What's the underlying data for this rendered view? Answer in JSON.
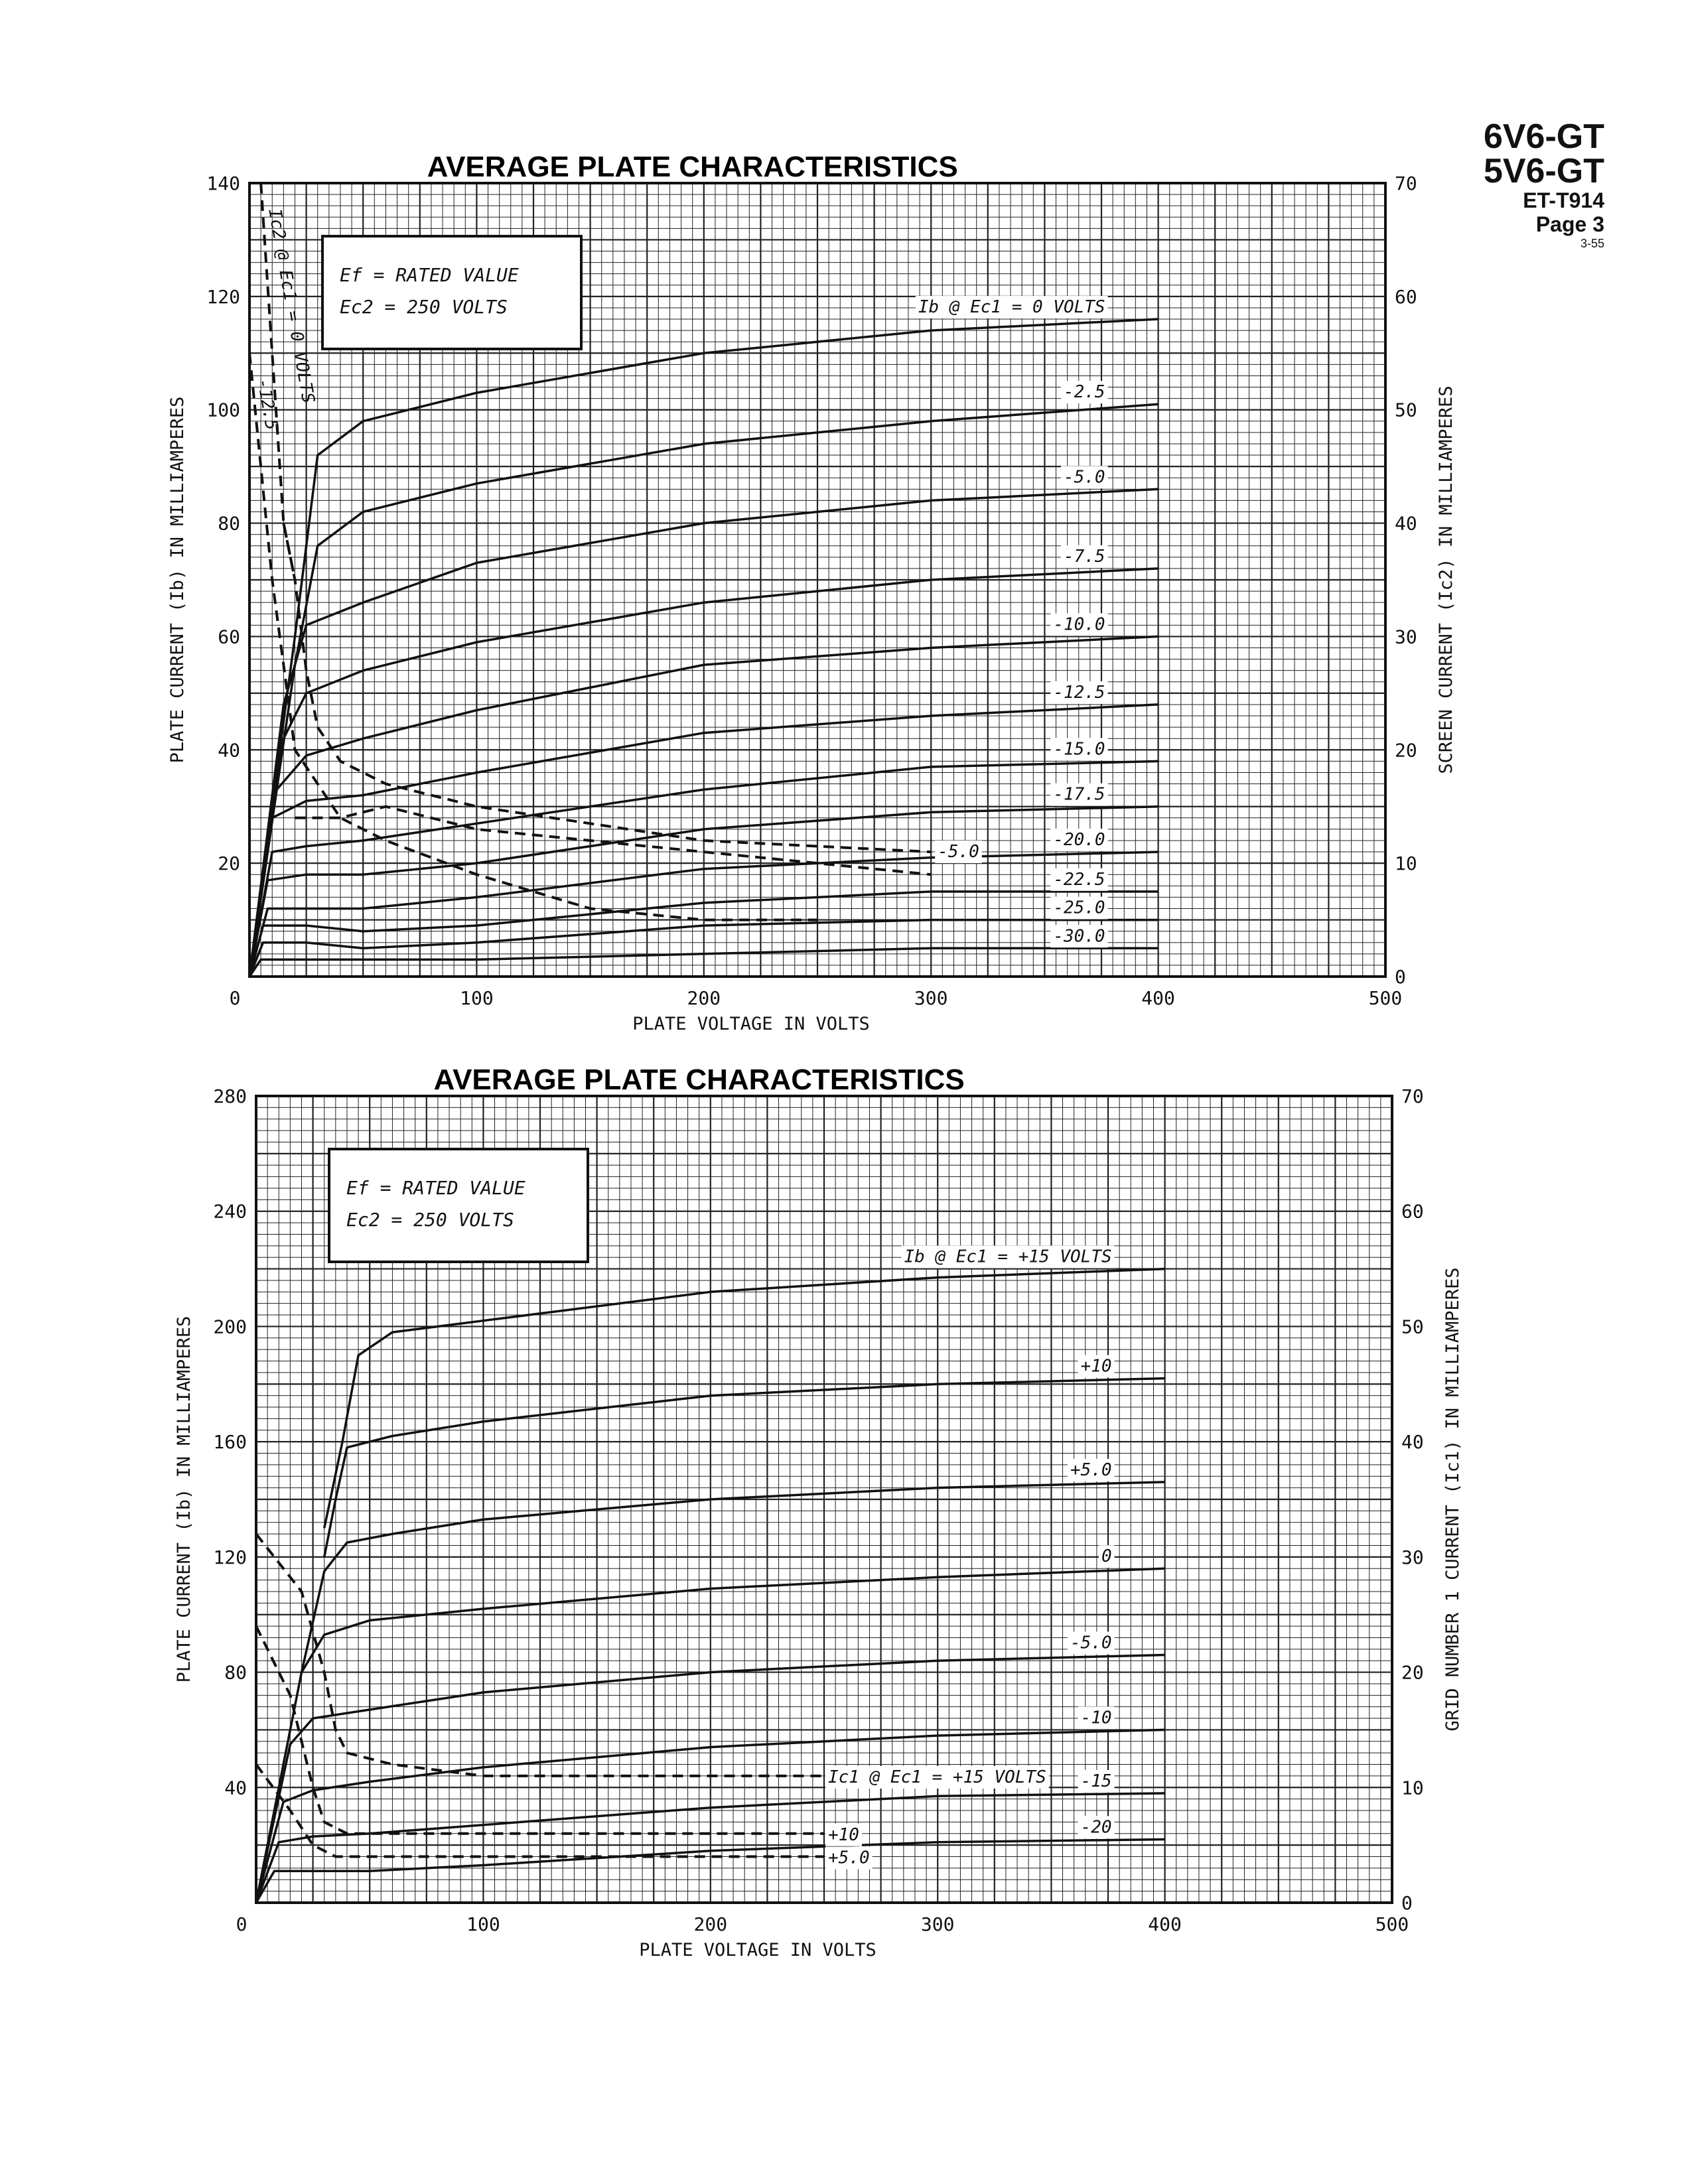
{
  "header": {
    "tube1": "6V6-GT",
    "tube2": "5V6-GT",
    "code": "ET-T914",
    "page": "Page 3",
    "date": "3-55"
  },
  "chart_data": [
    {
      "type": "line",
      "title": "AVERAGE PLATE CHARACTERISTICS",
      "xlabel": "PLATE VOLTAGE IN VOLTS",
      "ylabel": "PLATE CURRENT (Ib) IN MILLIAMPERES",
      "y2label": "SCREEN CURRENT (Ic2) IN MILLIAMPERES",
      "xlim": [
        0,
        500
      ],
      "ylim": [
        0,
        140
      ],
      "y2lim": [
        0,
        70
      ],
      "grid": true,
      "xticks": [
        "0",
        "100",
        "200",
        "300",
        "400",
        "500"
      ],
      "yticks": [
        "20",
        "40",
        "60",
        "80",
        "100",
        "120",
        "140"
      ],
      "y2ticks": [
        "0",
        "10",
        "20",
        "30",
        "40",
        "50",
        "60",
        "70"
      ],
      "conditions": [
        "Ef = RATED VALUE",
        "Ec2 = 250 VOLTS"
      ],
      "series": [
        {
          "name": "Ib @ Ec1 = 0 VOLTS",
          "label": "Ib @ Ec1 = 0 VOLTS",
          "style": "solid",
          "x": [
            0,
            20,
            30,
            50,
            100,
            200,
            300,
            400
          ],
          "y": [
            0,
            60,
            92,
            98,
            103,
            110,
            114,
            116
          ]
        },
        {
          "name": "-2.5",
          "label": "-2.5",
          "style": "solid",
          "x": [
            0,
            20,
            30,
            50,
            100,
            200,
            300,
            400
          ],
          "y": [
            0,
            55,
            76,
            82,
            87,
            94,
            98,
            101
          ]
        },
        {
          "name": "-5.0",
          "label": "-5.0",
          "style": "solid",
          "x": [
            0,
            15,
            25,
            50,
            100,
            200,
            300,
            400
          ],
          "y": [
            0,
            48,
            62,
            66,
            73,
            80,
            84,
            86
          ]
        },
        {
          "name": "-7.5",
          "label": "-7.5",
          "style": "solid",
          "x": [
            0,
            15,
            25,
            50,
            100,
            200,
            300,
            400
          ],
          "y": [
            0,
            42,
            50,
            54,
            59,
            66,
            70,
            72
          ]
        },
        {
          "name": "-10.0",
          "label": "-10.0",
          "style": "solid",
          "x": [
            0,
            12,
            25,
            50,
            100,
            200,
            300,
            400
          ],
          "y": [
            0,
            33,
            39,
            42,
            47,
            55,
            58,
            60
          ]
        },
        {
          "name": "-12.5",
          "label": "-12.5",
          "style": "solid",
          "x": [
            0,
            10,
            25,
            50,
            100,
            200,
            300,
            400
          ],
          "y": [
            0,
            28,
            31,
            32,
            36,
            43,
            46,
            48
          ]
        },
        {
          "name": "-15.0",
          "label": "-15.0",
          "style": "solid",
          "x": [
            0,
            10,
            25,
            50,
            100,
            200,
            300,
            400
          ],
          "y": [
            0,
            22,
            23,
            24,
            27,
            33,
            37,
            38
          ]
        },
        {
          "name": "-17.5",
          "label": "-17.5",
          "style": "solid",
          "x": [
            0,
            8,
            25,
            50,
            100,
            200,
            300,
            400
          ],
          "y": [
            0,
            17,
            18,
            18,
            20,
            26,
            29,
            30
          ]
        },
        {
          "name": "-20.0",
          "label": "-20.0",
          "style": "solid",
          "x": [
            0,
            8,
            25,
            50,
            100,
            200,
            300,
            400
          ],
          "y": [
            0,
            12,
            12,
            12,
            14,
            19,
            21,
            22
          ]
        },
        {
          "name": "-22.5",
          "label": "-22.5",
          "style": "solid",
          "x": [
            0,
            6,
            25,
            50,
            100,
            200,
            300,
            400
          ],
          "y": [
            0,
            9,
            9,
            8,
            9,
            13,
            15,
            15
          ]
        },
        {
          "name": "-25.0",
          "label": "-25.0",
          "style": "solid",
          "x": [
            0,
            6,
            25,
            50,
            100,
            200,
            300,
            400
          ],
          "y": [
            0,
            6,
            6,
            5,
            6,
            9,
            10,
            10
          ]
        },
        {
          "name": "-30.0",
          "label": "-30.0",
          "style": "solid",
          "x": [
            0,
            5,
            25,
            50,
            100,
            200,
            300,
            400
          ],
          "y": [
            0,
            3,
            3,
            3,
            3,
            4,
            5,
            5
          ]
        },
        {
          "name": "Ic2 @ Ec1 = 0 VOLTS",
          "label": "Ic2 @ Ec1 = 0 VOLTS",
          "style": "dashed",
          "axis": "y2",
          "x": [
            5,
            10,
            15,
            20
          ],
          "y": [
            70,
            55,
            40,
            35
          ]
        },
        {
          "name": "-5.0",
          "label": "-5.0",
          "style": "dashed",
          "axis": "y2",
          "x": [
            15,
            20,
            25,
            30,
            40,
            60,
            100,
            200,
            300
          ],
          "y": [
            40,
            35,
            27,
            22,
            19,
            17,
            15,
            12,
            11
          ]
        },
        {
          "name": "-12.5",
          "label": "-12.5",
          "style": "dashed",
          "axis": "y2",
          "x": [
            0,
            5,
            10,
            20,
            40,
            60,
            100,
            150,
            200,
            250
          ],
          "y": [
            55,
            45,
            35,
            20,
            14,
            12,
            9,
            6,
            5,
            5
          ]
        },
        {
          "name": "",
          "label": "",
          "style": "dashed",
          "axis": "y2",
          "x": [
            20,
            40,
            60,
            100,
            150,
            200,
            300
          ],
          "y": [
            14,
            14,
            15,
            13,
            12,
            11,
            9
          ]
        }
      ]
    },
    {
      "type": "line",
      "title": "AVERAGE PLATE CHARACTERISTICS",
      "xlabel": "PLATE VOLTAGE IN VOLTS",
      "ylabel": "PLATE CURRENT (Ib) IN MILLIAMPERES",
      "y2label": "GRID NUMBER 1 CURRENT (Ic1) IN MILLIAMPERES",
      "xlim": [
        0,
        500
      ],
      "ylim": [
        0,
        280
      ],
      "y2lim": [
        0,
        70
      ],
      "grid": true,
      "xticks": [
        "0",
        "100",
        "200",
        "300",
        "400",
        "500"
      ],
      "yticks": [
        "40",
        "80",
        "120",
        "160",
        "200",
        "240",
        "280"
      ],
      "y2ticks": [
        "0",
        "10",
        "20",
        "30",
        "40",
        "50",
        "60",
        "70"
      ],
      "conditions": [
        "Ef = RATED VALUE",
        "Ec2 = 250 VOLTS"
      ],
      "series": [
        {
          "name": "Ib @ Ec1 = +15 VOLTS",
          "label": "Ib @ Ec1 = +15 VOLTS",
          "style": "solid",
          "x": [
            30,
            38,
            45,
            60,
            100,
            200,
            300,
            400
          ],
          "y": [
            130,
            160,
            190,
            198,
            202,
            212,
            217,
            220
          ]
        },
        {
          "name": "+10",
          "label": "+10",
          "style": "solid",
          "x": [
            30,
            35,
            40,
            60,
            100,
            200,
            300,
            400
          ],
          "y": [
            120,
            140,
            158,
            162,
            167,
            176,
            180,
            182
          ]
        },
        {
          "name": "+5.0",
          "label": "+5.0",
          "style": "solid",
          "x": [
            20,
            30,
            40,
            60,
            100,
            200,
            300,
            400
          ],
          "y": [
            80,
            115,
            125,
            128,
            133,
            140,
            144,
            146
          ]
        },
        {
          "name": "0",
          "label": "0",
          "style": "solid",
          "x": [
            0,
            20,
            30,
            50,
            100,
            200,
            300,
            400
          ],
          "y": [
            0,
            80,
            93,
            98,
            102,
            109,
            113,
            116
          ]
        },
        {
          "name": "-5.0",
          "label": "-5.0",
          "style": "solid",
          "x": [
            0,
            15,
            25,
            50,
            100,
            200,
            300,
            400
          ],
          "y": [
            0,
            55,
            64,
            67,
            73,
            80,
            84,
            86
          ]
        },
        {
          "name": "-10",
          "label": "-10",
          "style": "solid",
          "x": [
            0,
            12,
            25,
            50,
            100,
            200,
            300,
            400
          ],
          "y": [
            0,
            35,
            39,
            42,
            47,
            54,
            58,
            60
          ]
        },
        {
          "name": "-15",
          "label": "-15",
          "style": "solid",
          "x": [
            0,
            10,
            25,
            50,
            100,
            200,
            300,
            400
          ],
          "y": [
            0,
            21,
            23,
            24,
            27,
            33,
            37,
            38
          ]
        },
        {
          "name": "-20",
          "label": "-20",
          "style": "solid",
          "x": [
            0,
            8,
            25,
            50,
            100,
            200,
            300,
            400
          ],
          "y": [
            0,
            11,
            11,
            11,
            13,
            18,
            21,
            22
          ]
        },
        {
          "name": "Ic1 @ Ec1 = +15 VOLTS",
          "label": "Ic1 @ Ec1 = +15 VOLTS",
          "style": "dashed",
          "axis": "y2",
          "x": [
            0,
            20,
            30,
            35,
            40,
            60,
            100,
            200,
            250
          ],
          "y": [
            32,
            27,
            20,
            15,
            13,
            12,
            11,
            11,
            11
          ]
        },
        {
          "name": "+10",
          "label": "+10",
          "style": "dashed",
          "axis": "y2",
          "x": [
            0,
            15,
            25,
            30,
            40,
            60,
            100,
            200,
            250
          ],
          "y": [
            24,
            18,
            10,
            7,
            6,
            6,
            6,
            6,
            6
          ]
        },
        {
          "name": "+5.0",
          "label": "+5.0",
          "style": "dashed",
          "axis": "y2",
          "x": [
            0,
            15,
            25,
            35,
            50,
            100,
            200,
            250
          ],
          "y": [
            12,
            8,
            5,
            4,
            4,
            4,
            4,
            4
          ]
        }
      ]
    }
  ]
}
